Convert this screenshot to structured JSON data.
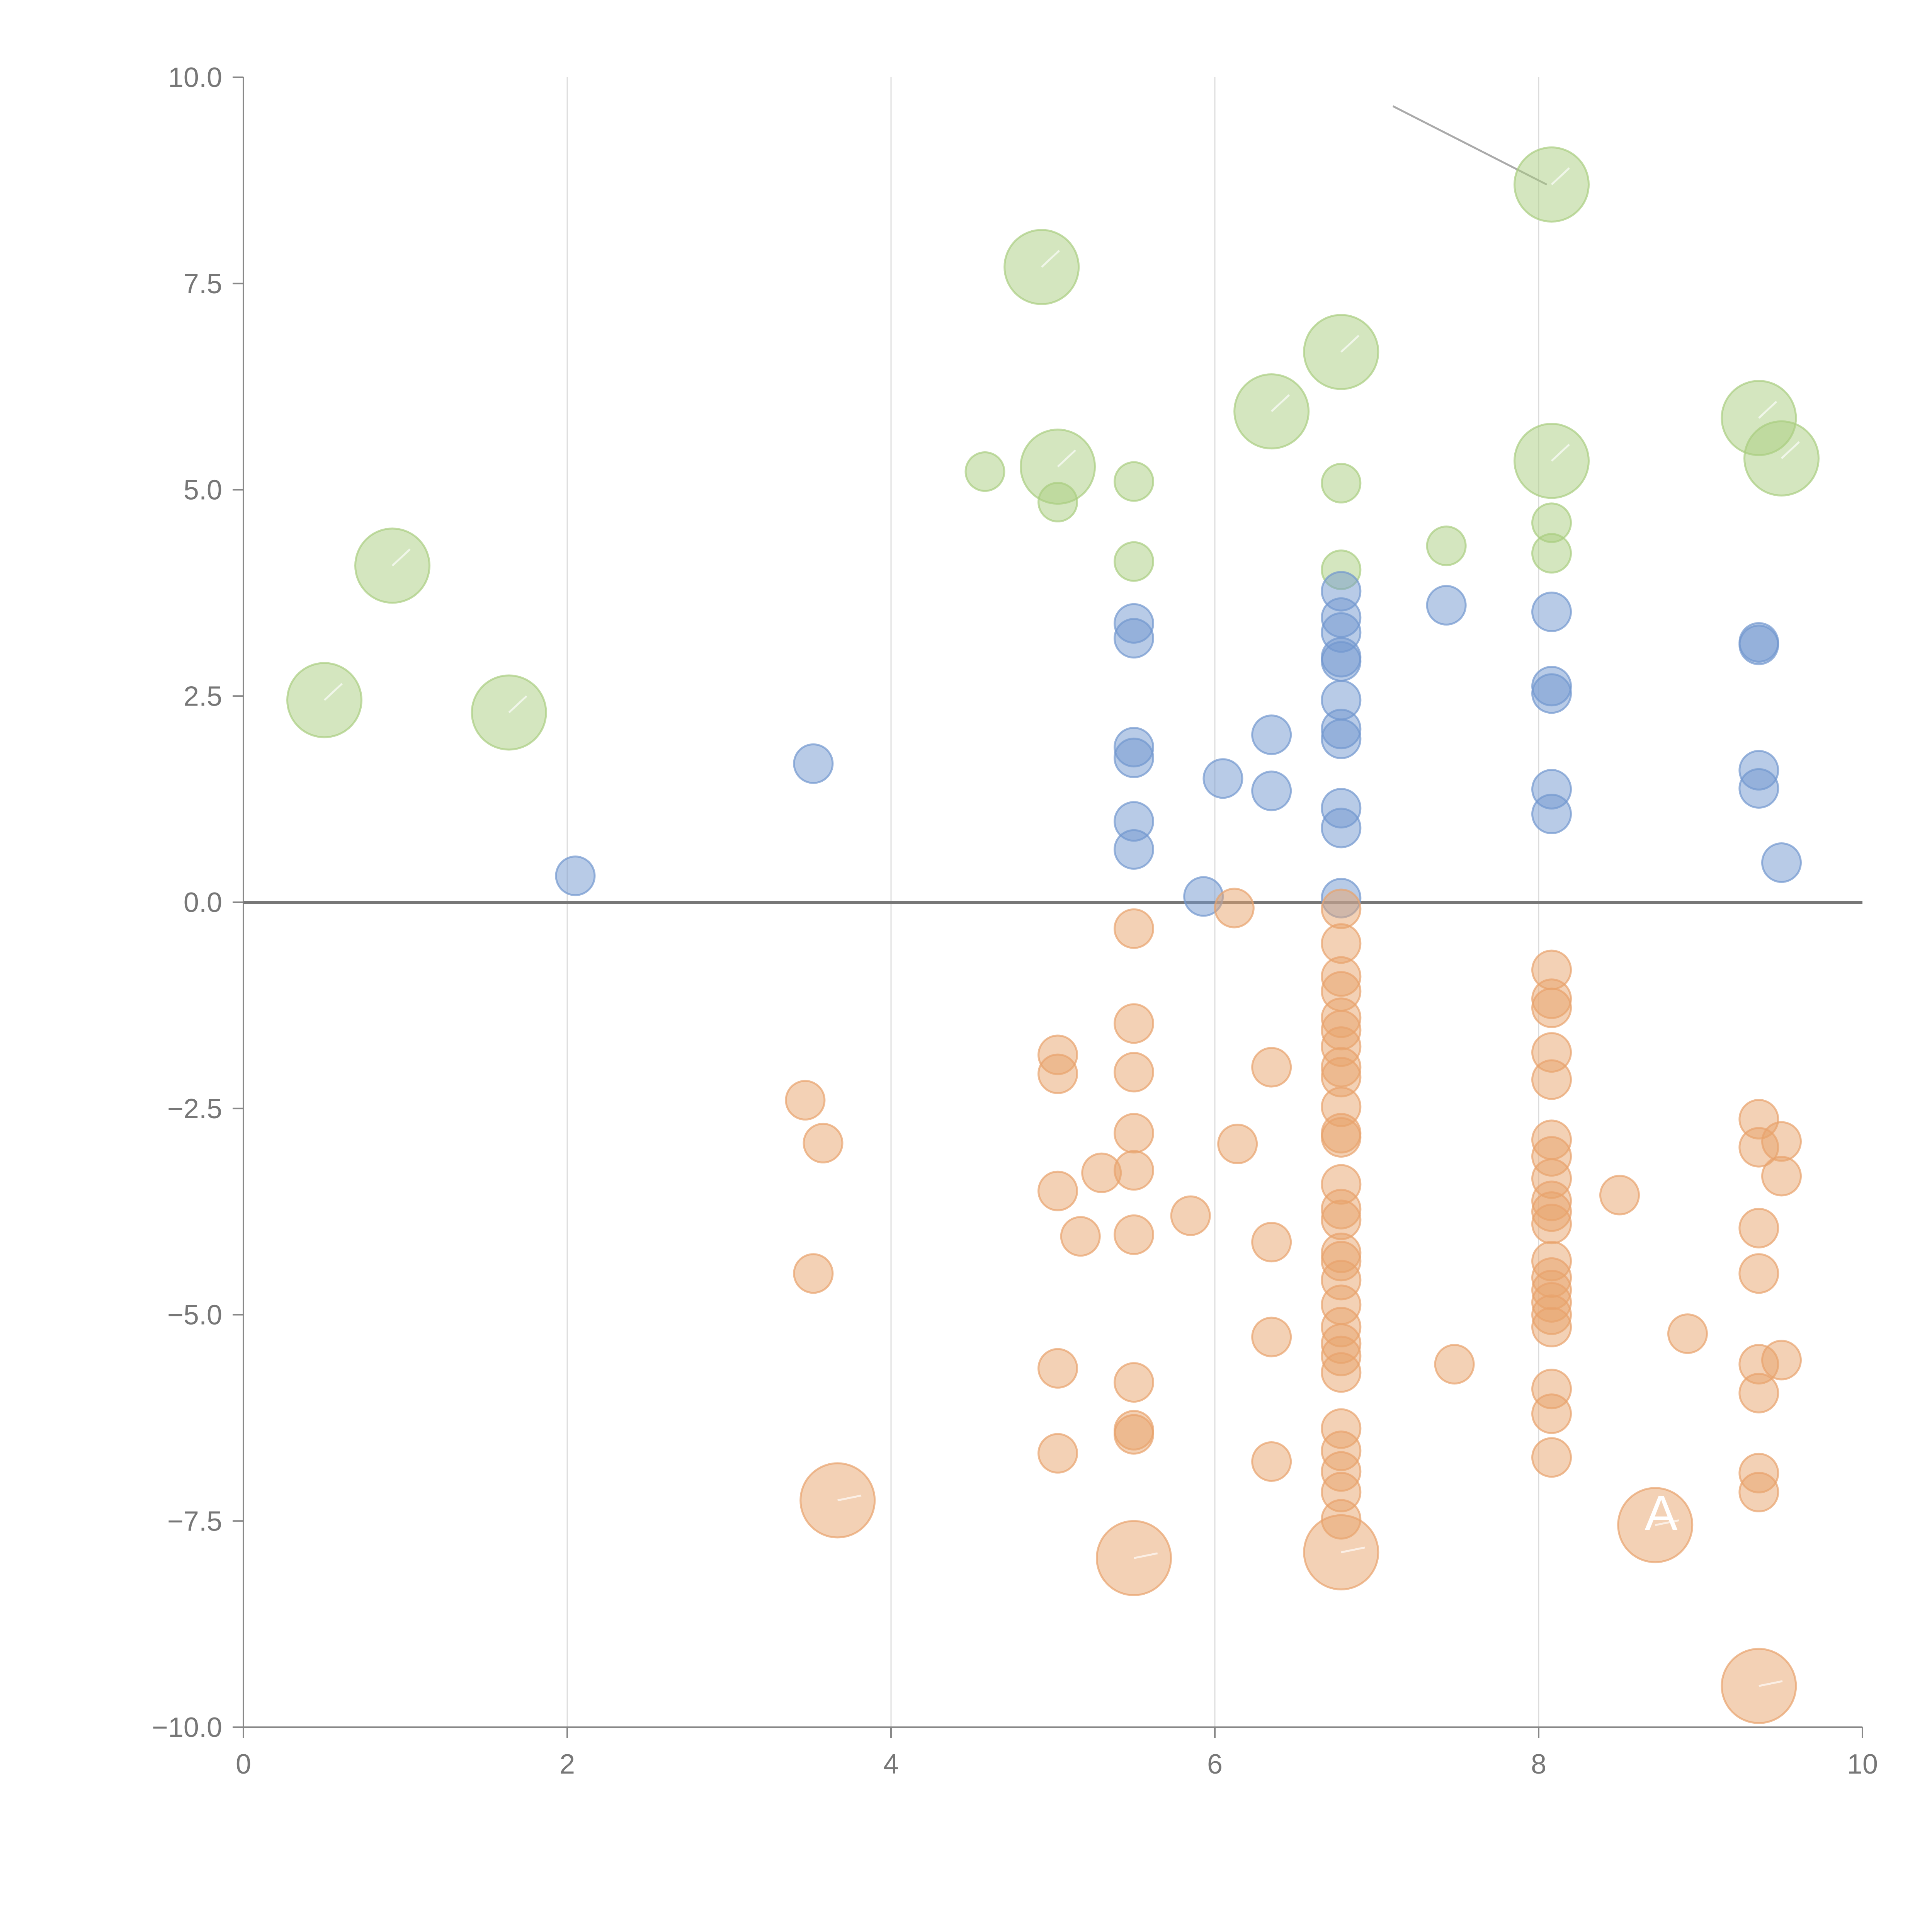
{
  "colors": {
    "positive_green": "#a9cd80",
    "positive_blue": "#7297cf",
    "negative_orange": "#e8a36c",
    "axis": "#888888",
    "grid": "#dcdcdc",
    "zero_line": "#777777",
    "tick_text": "#777777"
  },
  "chart_data": {
    "type": "scatter",
    "title": "",
    "xlabel": "",
    "ylabel": "",
    "xlim": [
      0,
      10
    ],
    "ylim": [
      -10,
      10
    ],
    "x_ticks": [
      0,
      2,
      4,
      6,
      8,
      10
    ],
    "x_tick_labels": [
      "0",
      "2",
      "4",
      "6",
      "8",
      "10"
    ],
    "y_ticks": [
      10,
      7.5,
      5,
      2.5,
      0,
      -2.5,
      -5,
      -7.5,
      -10
    ],
    "y_tick_labels": [
      "10.0",
      "7.5",
      "5.0",
      "2.5",
      "0.0",
      "−2.5",
      "−5.0",
      "−7.5",
      "−10.0"
    ],
    "vertical_grid_at": [
      2,
      4,
      6,
      8
    ],
    "reference_line_y": 0,
    "bubble_label": "A",
    "bubble_label_at": [
      8.75,
      -7.4
    ],
    "callout": {
      "from": [
        7.1,
        9.65
      ],
      "to": [
        8.05,
        8.7
      ]
    },
    "series": [
      {
        "name": "green",
        "color_key": "positive_green",
        "points": [
          [
            0.5,
            2.45,
            2
          ],
          [
            0.92,
            4.08,
            2
          ],
          [
            1.64,
            2.3,
            2
          ],
          [
            4.58,
            5.22,
            1
          ],
          [
            4.93,
            7.7,
            2
          ],
          [
            5.03,
            4.85,
            1
          ],
          [
            5.03,
            5.28,
            2
          ],
          [
            5.5,
            5.1,
            1
          ],
          [
            5.5,
            4.13,
            1
          ],
          [
            6.35,
            5.95,
            2
          ],
          [
            6.78,
            6.67,
            2
          ],
          [
            6.78,
            5.08,
            1
          ],
          [
            6.78,
            4.03,
            1
          ],
          [
            7.43,
            4.32,
            1
          ],
          [
            8.08,
            8.7,
            2
          ],
          [
            8.08,
            5.35,
            2
          ],
          [
            8.08,
            4.6,
            1
          ],
          [
            8.08,
            4.23,
            1
          ],
          [
            9.36,
            5.87,
            2
          ],
          [
            9.5,
            5.38,
            2
          ]
        ]
      },
      {
        "name": "blue",
        "color_key": "positive_blue",
        "points": [
          [
            2.05,
            0.32,
            1
          ],
          [
            3.52,
            1.68,
            1
          ],
          [
            5.5,
            3.38,
            1
          ],
          [
            5.5,
            3.2,
            1
          ],
          [
            5.5,
            1.88,
            1
          ],
          [
            5.5,
            1.75,
            1
          ],
          [
            5.5,
            0.98,
            1
          ],
          [
            5.5,
            0.64,
            1
          ],
          [
            5.93,
            0.07,
            1
          ],
          [
            6.05,
            1.5,
            1
          ],
          [
            6.35,
            2.03,
            1
          ],
          [
            6.35,
            1.35,
            1
          ],
          [
            6.78,
            3.77,
            1
          ],
          [
            6.78,
            3.45,
            1
          ],
          [
            6.78,
            3.27,
            1
          ],
          [
            6.78,
            2.97,
            1
          ],
          [
            6.78,
            2.92,
            1
          ],
          [
            6.78,
            2.45,
            1
          ],
          [
            6.78,
            2.1,
            1
          ],
          [
            6.78,
            1.98,
            1
          ],
          [
            6.78,
            1.14,
            1
          ],
          [
            6.78,
            0.9,
            1
          ],
          [
            6.78,
            0.05,
            1
          ],
          [
            7.43,
            3.6,
            1
          ],
          [
            8.08,
            3.52,
            1
          ],
          [
            8.08,
            2.62,
            1
          ],
          [
            8.08,
            2.53,
            1
          ],
          [
            8.08,
            1.37,
            1
          ],
          [
            8.08,
            1.07,
            1
          ],
          [
            9.36,
            3.15,
            1
          ],
          [
            9.36,
            3.12,
            1
          ],
          [
            9.36,
            1.6,
            1
          ],
          [
            9.36,
            1.38,
            1
          ],
          [
            9.5,
            0.48,
            1
          ]
        ]
      },
      {
        "name": "orange",
        "color_key": "negative_orange",
        "points": [
          [
            3.47,
            -2.4,
            1
          ],
          [
            3.58,
            -2.92,
            1
          ],
          [
            3.52,
            -4.5,
            1
          ],
          [
            3.67,
            -7.25,
            2
          ],
          [
            5.03,
            -1.85,
            1
          ],
          [
            5.03,
            -2.08,
            1
          ],
          [
            5.03,
            -3.5,
            1
          ],
          [
            5.03,
            -5.65,
            1
          ],
          [
            5.03,
            -6.68,
            1
          ],
          [
            5.17,
            -4.05,
            1
          ],
          [
            5.3,
            -3.28,
            1
          ],
          [
            5.5,
            -0.32,
            1
          ],
          [
            5.5,
            -1.47,
            1
          ],
          [
            5.5,
            -2.06,
            1
          ],
          [
            5.5,
            -2.8,
            1
          ],
          [
            5.5,
            -3.25,
            1
          ],
          [
            5.5,
            -4.03,
            1
          ],
          [
            5.5,
            -5.82,
            1
          ],
          [
            5.5,
            -6.4,
            1
          ],
          [
            5.5,
            -6.45,
            1
          ],
          [
            5.5,
            -7.95,
            2
          ],
          [
            5.85,
            -3.8,
            1
          ],
          [
            6.12,
            -0.07,
            1
          ],
          [
            6.14,
            -2.93,
            1
          ],
          [
            6.35,
            -2.0,
            1
          ],
          [
            6.35,
            -4.12,
            1
          ],
          [
            6.35,
            -5.27,
            1
          ],
          [
            6.35,
            -6.78,
            1
          ],
          [
            6.78,
            -0.08,
            1
          ],
          [
            6.78,
            -0.5,
            1
          ],
          [
            6.78,
            -0.9,
            1
          ],
          [
            6.78,
            -1.08,
            1
          ],
          [
            6.78,
            -1.4,
            1
          ],
          [
            6.78,
            -1.55,
            1
          ],
          [
            6.78,
            -1.75,
            1
          ],
          [
            6.78,
            -2.0,
            1
          ],
          [
            6.78,
            -2.12,
            1
          ],
          [
            6.78,
            -2.48,
            1
          ],
          [
            6.78,
            -2.8,
            1
          ],
          [
            6.78,
            -2.85,
            1
          ],
          [
            6.78,
            -3.42,
            1
          ],
          [
            6.78,
            -3.72,
            1
          ],
          [
            6.78,
            -3.85,
            1
          ],
          [
            6.78,
            -4.25,
            1
          ],
          [
            6.78,
            -4.35,
            1
          ],
          [
            6.78,
            -4.58,
            1
          ],
          [
            6.78,
            -4.88,
            1
          ],
          [
            6.78,
            -5.15,
            1
          ],
          [
            6.78,
            -5.35,
            1
          ],
          [
            6.78,
            -5.5,
            1
          ],
          [
            6.78,
            -5.7,
            1
          ],
          [
            6.78,
            -6.38,
            1
          ],
          [
            6.78,
            -6.65,
            1
          ],
          [
            6.78,
            -6.9,
            1
          ],
          [
            6.78,
            -7.15,
            1
          ],
          [
            6.78,
            -7.48,
            1
          ],
          [
            6.78,
            -7.88,
            2
          ],
          [
            7.48,
            -5.6,
            1
          ],
          [
            8.08,
            -0.82,
            1
          ],
          [
            8.08,
            -1.17,
            1
          ],
          [
            8.08,
            -1.28,
            1
          ],
          [
            8.08,
            -1.82,
            1
          ],
          [
            8.08,
            -2.15,
            1
          ],
          [
            8.08,
            -2.88,
            1
          ],
          [
            8.08,
            -3.08,
            1
          ],
          [
            8.08,
            -3.35,
            1
          ],
          [
            8.08,
            -3.62,
            1
          ],
          [
            8.08,
            -3.75,
            1
          ],
          [
            8.08,
            -3.9,
            1
          ],
          [
            8.08,
            -4.35,
            1
          ],
          [
            8.08,
            -4.55,
            1
          ],
          [
            8.08,
            -4.7,
            1
          ],
          [
            8.08,
            -4.85,
            1
          ],
          [
            8.08,
            -5.0,
            1
          ],
          [
            8.08,
            -5.15,
            1
          ],
          [
            8.08,
            -5.9,
            1
          ],
          [
            8.08,
            -6.2,
            1
          ],
          [
            8.08,
            -6.73,
            1
          ],
          [
            8.5,
            -3.55,
            1
          ],
          [
            8.72,
            -7.55,
            2
          ],
          [
            8.92,
            -5.23,
            1
          ],
          [
            9.36,
            -2.63,
            1
          ],
          [
            9.36,
            -2.97,
            1
          ],
          [
            9.36,
            -3.95,
            1
          ],
          [
            9.36,
            -4.5,
            1
          ],
          [
            9.36,
            -5.6,
            1
          ],
          [
            9.36,
            -5.95,
            1
          ],
          [
            9.36,
            -6.92,
            1
          ],
          [
            9.36,
            -7.15,
            1
          ],
          [
            9.5,
            -2.9,
            1
          ],
          [
            9.5,
            -3.32,
            1
          ],
          [
            9.5,
            -5.55,
            1
          ],
          [
            9.36,
            -9.5,
            2
          ]
        ]
      }
    ]
  }
}
